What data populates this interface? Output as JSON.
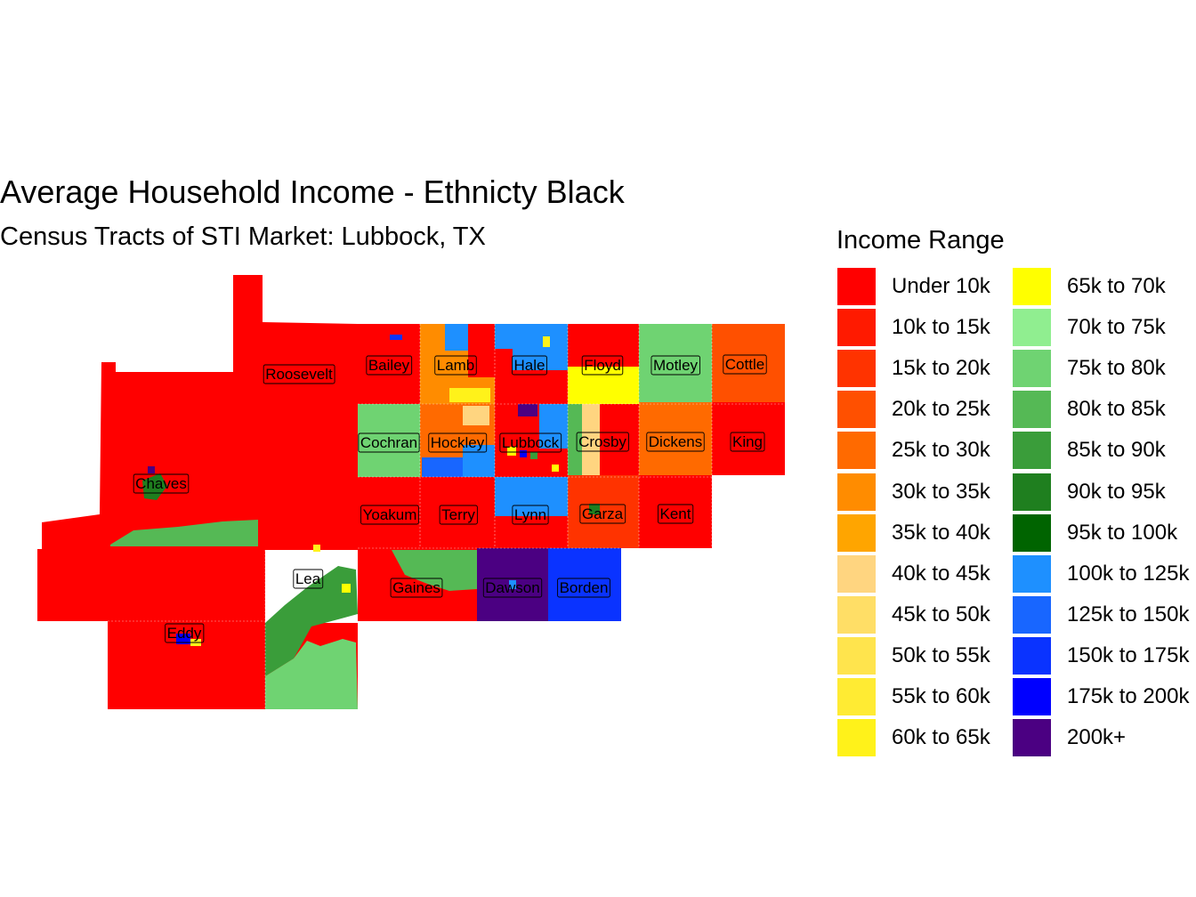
{
  "map": {
    "title": "Average Household Income - Ethnicty Black",
    "subtitle": "Census Tracts of STI Market: Lubbock, TX"
  },
  "legend": {
    "title": "Income Range",
    "items": [
      {
        "label": "Under 10k",
        "color": "#FF0000"
      },
      {
        "label": "10k to 15k",
        "color": "#FF1A00"
      },
      {
        "label": "15k to 20k",
        "color": "#FF3300"
      },
      {
        "label": "20k to 25k",
        "color": "#FF5000"
      },
      {
        "label": "25k to 30k",
        "color": "#FF6A00"
      },
      {
        "label": "30k to 35k",
        "color": "#FF8C00"
      },
      {
        "label": "35k to 40k",
        "color": "#FFA500"
      },
      {
        "label": "40k to 45k",
        "color": "#FFD580"
      },
      {
        "label": "45k to 50k",
        "color": "#FFDE66"
      },
      {
        "label": "50k to 55k",
        "color": "#FFE44D"
      },
      {
        "label": "55k to 60k",
        "color": "#FFEB33"
      },
      {
        "label": "60k to 65k",
        "color": "#FFF21A"
      },
      {
        "label": "65k to 70k",
        "color": "#FFFF00"
      },
      {
        "label": "70k to 75k",
        "color": "#90EE90"
      },
      {
        "label": "75k to 80k",
        "color": "#6FD372"
      },
      {
        "label": "80k to 85k",
        "color": "#55B955"
      },
      {
        "label": "85k to 90k",
        "color": "#3A9D3A"
      },
      {
        "label": "90k to 95k",
        "color": "#1F7F1F"
      },
      {
        "label": "95k to 100k",
        "color": "#006400"
      },
      {
        "label": "100k to 125k",
        "color": "#1E90FF"
      },
      {
        "label": "125k to 150k",
        "color": "#1866FF"
      },
      {
        "label": "150k to 175k",
        "color": "#0A33FF"
      },
      {
        "label": "175k to 200k",
        "color": "#0000FF"
      },
      {
        "label": "200k+",
        "color": "#4B0082"
      }
    ]
  },
  "counties": [
    {
      "name": "Roosevelt",
      "fill": "#FF0000"
    },
    {
      "name": "Bailey",
      "fill": "#FF0000"
    },
    {
      "name": "Lamb",
      "fill": "#FF8C00"
    },
    {
      "name": "Hale",
      "fill": "#FF0000"
    },
    {
      "name": "Floyd",
      "fill": "#FFFF00"
    },
    {
      "name": "Motley",
      "fill": "#6FD372"
    },
    {
      "name": "Cottle",
      "fill": "#FF5000"
    },
    {
      "name": "Cochran",
      "fill": "#6FD372"
    },
    {
      "name": "Hockley",
      "fill": "#FF6A00"
    },
    {
      "name": "Lubbock",
      "fill": "#FF0000"
    },
    {
      "name": "Crosby",
      "fill": "#FF0000"
    },
    {
      "name": "Dickens",
      "fill": "#FF6A00"
    },
    {
      "name": "King",
      "fill": "#FF0000"
    },
    {
      "name": "Chaves",
      "fill": "#FF0000"
    },
    {
      "name": "Yoakum",
      "fill": "#FF0000"
    },
    {
      "name": "Terry",
      "fill": "#FF0000"
    },
    {
      "name": "Lynn",
      "fill": "#1E90FF"
    },
    {
      "name": "Garza",
      "fill": "#FF3300"
    },
    {
      "name": "Kent",
      "fill": "#FF0000"
    },
    {
      "name": "Lea",
      "fill": "#FF0000"
    },
    {
      "name": "Gaines",
      "fill": "#FF0000"
    },
    {
      "name": "Dawson",
      "fill": "#4B0082"
    },
    {
      "name": "Borden",
      "fill": "#0A33FF"
    },
    {
      "name": "Eddy",
      "fill": "#FF0000"
    }
  ]
}
